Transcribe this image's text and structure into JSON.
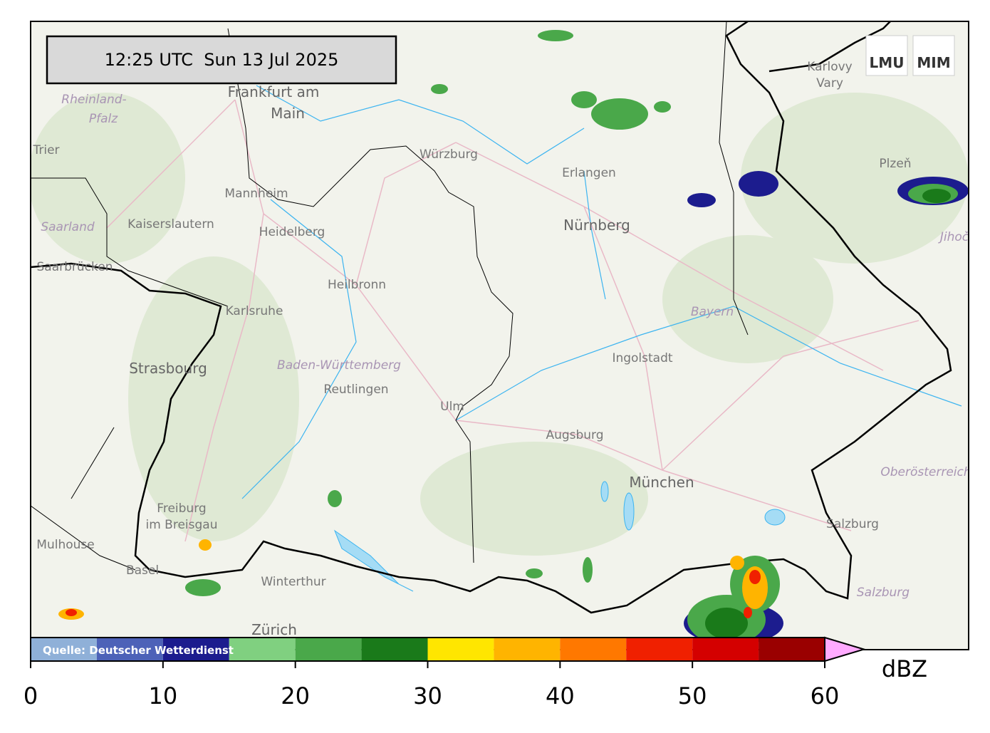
{
  "timestamp": "12:25 UTC  Sun 13 Jul 2025",
  "logo": {
    "left": "LMU",
    "right": "MIM"
  },
  "map_labels": {
    "frankfurt_1": "Frankfurt am",
    "frankfurt_2": "Main",
    "rlp_1": "Rheinland-",
    "rlp_2": "Pfalz",
    "trier": "Trier",
    "wuerzburg": "Würzburg",
    "erlangen": "Erlangen",
    "nuernberg": "Nürnberg",
    "mannheim": "Mannheim",
    "kaiserslautern": "Kaiserslautern",
    "heidelberg": "Heidelberg",
    "saarland": "Saarland",
    "saarbruecken": "Saarbrücken",
    "heilbronn": "Heilbronn",
    "karlsruhe": "Karlsruhe",
    "strasbourg": "Strasbourg",
    "bw": "Baden-Württemberg",
    "reutlingen": "Reutlingen",
    "ulm": "Ulm",
    "augsburg": "Augsburg",
    "ingolstadt": "Ingolstadt",
    "bayern": "Bayern",
    "muenchen": "München",
    "ooe": "Oberösterreich",
    "salzburg_city": "Salzburg",
    "salzburg_state": "Salzburg",
    "freiburg_1": "Freiburg",
    "freiburg_2": "im Breisgau",
    "mulhouse": "Mulhouse",
    "basel": "Basel",
    "winterthur": "Winterthur",
    "zuerich": "Zürich",
    "karlovy_1": "Karlovy",
    "karlovy_2": "Vary",
    "plzen": "Plzeň",
    "jihocesky": "Jihoč"
  },
  "colorbar": {
    "source": "Quelle: Deutscher Wetterdienst",
    "label": "dBZ",
    "bounds": [
      0,
      5,
      10,
      15,
      20,
      25,
      30,
      35,
      40,
      45,
      50,
      55,
      60
    ],
    "colors": [
      "#8fb0d8",
      "#4d62b8",
      "#1c1c8e",
      "#80d080",
      "#4aa84a",
      "#1a7a1a",
      "#ffe600",
      "#ffb400",
      "#ff7800",
      "#f02000",
      "#d40000",
      "#9a0000"
    ],
    "extend_color": "#ffaaff",
    "ticks": [
      0,
      10,
      20,
      30,
      40,
      50,
      60
    ]
  }
}
